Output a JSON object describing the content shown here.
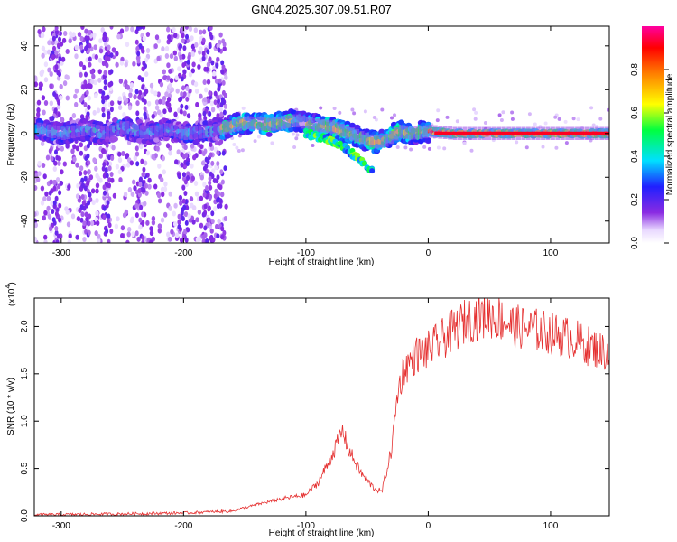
{
  "chart_data": [
    {
      "type": "heatmap",
      "title": "GN04.2025.307.09.51.R07",
      "xlabel": "Height of straight line (km)",
      "ylabel": "Frequency (Hz)",
      "xlim": [
        -322,
        148
      ],
      "ylim": [
        -50,
        49
      ],
      "xticks": [
        -300,
        -200,
        -100,
        0,
        100
      ],
      "yticks": [
        -40,
        -20,
        0,
        20,
        40
      ],
      "colorbar": {
        "label": "Normalized spectral amplitude",
        "range": [
          0.0,
          1.0
        ],
        "ticks": [
          "0.0",
          "0.2",
          "0.4",
          "0.6",
          "0.8"
        ]
      },
      "tracks": [
        {
          "name": "main-ridge",
          "points": [
            [
              -320,
              2
            ],
            [
              -300,
              0
            ],
            [
              -280,
              2
            ],
            [
              -265,
              0
            ],
            [
              -250,
              3
            ],
            [
              -230,
              0
            ],
            [
              -215,
              2
            ],
            [
              -200,
              0
            ],
            [
              -180,
              1
            ],
            [
              -165,
              3
            ],
            [
              -150,
              5
            ],
            [
              -130,
              4
            ],
            [
              -110,
              6
            ],
            [
              -95,
              4
            ],
            [
              -80,
              3
            ],
            [
              -70,
              1
            ],
            [
              -55,
              -2
            ],
            [
              -45,
              -4
            ],
            [
              -35,
              -3
            ],
            [
              -25,
              1
            ],
            [
              -15,
              0
            ],
            [
              0,
              1
            ],
            [
              20,
              0
            ],
            [
              60,
              0
            ],
            [
              100,
              0
            ],
            [
              148,
              0
            ]
          ]
        },
        {
          "name": "lower-branch",
          "points": [
            [
              -100,
              0
            ],
            [
              -85,
              -2
            ],
            [
              -70,
              -6
            ],
            [
              -60,
              -10
            ],
            [
              -50,
              -15
            ],
            [
              -45,
              -18
            ]
          ]
        }
      ]
    },
    {
      "type": "line",
      "xlabel": "Height of straight line (km)",
      "ylabel": "SNR (10 * v/v)",
      "multiplier": "(x10",
      "multiplier_exponent": "4",
      "xlim": [
        -322,
        148
      ],
      "ylim": [
        0,
        2.3
      ],
      "xticks": [
        -300,
        -200,
        -100,
        0,
        100
      ],
      "yticks": [
        "0.0",
        "0.5",
        "1.0",
        "1.5",
        "2.0"
      ],
      "color": "#e53030",
      "series": [
        {
          "name": "SNR",
          "points": [
            [
              -322,
              0.01
            ],
            [
              -250,
              0.02
            ],
            [
              -200,
              0.03
            ],
            [
              -160,
              0.05
            ],
            [
              -140,
              0.12
            ],
            [
              -120,
              0.18
            ],
            [
              -100,
              0.22
            ],
            [
              -90,
              0.35
            ],
            [
              -80,
              0.6
            ],
            [
              -70,
              0.9
            ],
            [
              -65,
              0.7
            ],
            [
              -55,
              0.45
            ],
            [
              -45,
              0.3
            ],
            [
              -38,
              0.25
            ],
            [
              -30,
              0.7
            ],
            [
              -25,
              1.3
            ],
            [
              -20,
              1.55
            ],
            [
              -10,
              1.7
            ],
            [
              0,
              1.75
            ],
            [
              10,
              1.85
            ],
            [
              20,
              1.95
            ],
            [
              30,
              2.05
            ],
            [
              40,
              2.1
            ],
            [
              50,
              2.12
            ],
            [
              60,
              2.08
            ],
            [
              70,
              2.0
            ],
            [
              80,
              1.98
            ],
            [
              90,
              1.96
            ],
            [
              100,
              1.93
            ],
            [
              110,
              1.9
            ],
            [
              120,
              1.86
            ],
            [
              130,
              1.8
            ],
            [
              140,
              1.75
            ],
            [
              148,
              1.72
            ]
          ]
        }
      ]
    }
  ]
}
